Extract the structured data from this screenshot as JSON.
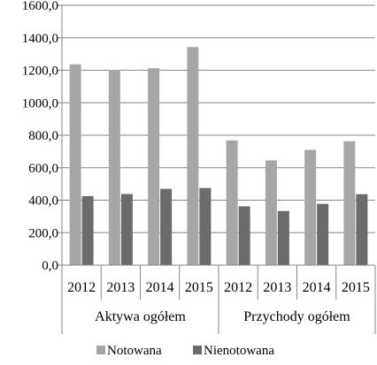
{
  "chart_data": {
    "type": "bar",
    "title": "",
    "xlabel": "",
    "ylabel": "",
    "ylim": [
      0,
      1600
    ],
    "y_ticks": [
      "0,0",
      "200,0",
      "400,0",
      "600,0",
      "800,0",
      "1000,0",
      "1200,0",
      "1400,0",
      "1600,0"
    ],
    "grid": true,
    "legend_position": "bottom",
    "groups": [
      {
        "label": "Aktywa ogółem",
        "categories": [
          "2012",
          "2013",
          "2014",
          "2015"
        ]
      },
      {
        "label": "Przychody ogółem",
        "categories": [
          "2012",
          "2013",
          "2014",
          "2015"
        ]
      }
    ],
    "series": [
      {
        "name": "Notowana",
        "color": "#a6a6a6",
        "values": [
          1237,
          1203,
          1213,
          1343,
          768,
          645,
          710,
          763
        ]
      },
      {
        "name": "Nienotowana",
        "color": "#6b6b6b",
        "values": [
          425,
          438,
          470,
          475,
          362,
          333,
          377,
          437
        ]
      }
    ]
  }
}
